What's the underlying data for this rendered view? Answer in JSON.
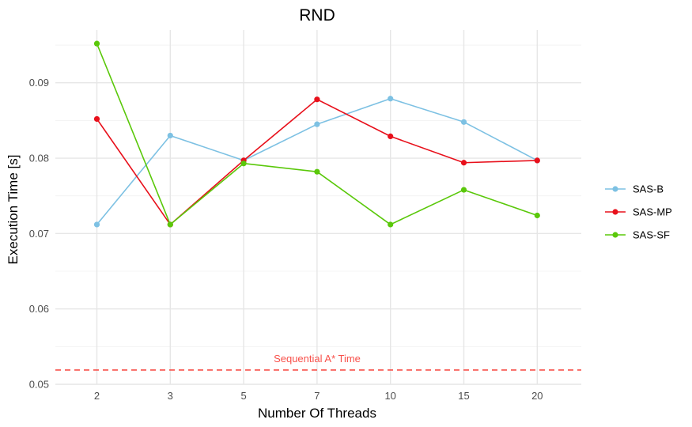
{
  "chart_data": {
    "type": "line",
    "title": "RND",
    "xlabel": "Number Of Threads",
    "ylabel": "Execution Time [s]",
    "categories": [
      "2",
      "3",
      "5",
      "7",
      "10",
      "15",
      "20"
    ],
    "ylim": [
      0.05,
      0.097
    ],
    "yticks": [
      0.05,
      0.06,
      0.07,
      0.08,
      0.09
    ],
    "ytick_labels": [
      "0.05",
      "0.06",
      "0.07",
      "0.08",
      "0.09"
    ],
    "grid": true,
    "legend_position": "right",
    "series": [
      {
        "name": "SAS-B",
        "color": "#7dc1e3",
        "values": [
          0.0712,
          0.083,
          0.0797,
          0.0845,
          0.0879,
          0.0848,
          0.0797
        ]
      },
      {
        "name": "SAS-MP",
        "color": "#e8101b",
        "values": [
          0.0852,
          0.0712,
          0.0797,
          0.0878,
          0.0829,
          0.0794,
          0.0797
        ]
      },
      {
        "name": "SAS-SF",
        "color": "#5ac80a",
        "values": [
          0.0952,
          0.0712,
          0.0793,
          0.0782,
          0.0712,
          0.0758,
          0.0724
        ]
      }
    ],
    "reference_line": {
      "label": "Sequential A* Time",
      "value": 0.0519,
      "color": "#f8504a",
      "style": "dashed"
    }
  }
}
